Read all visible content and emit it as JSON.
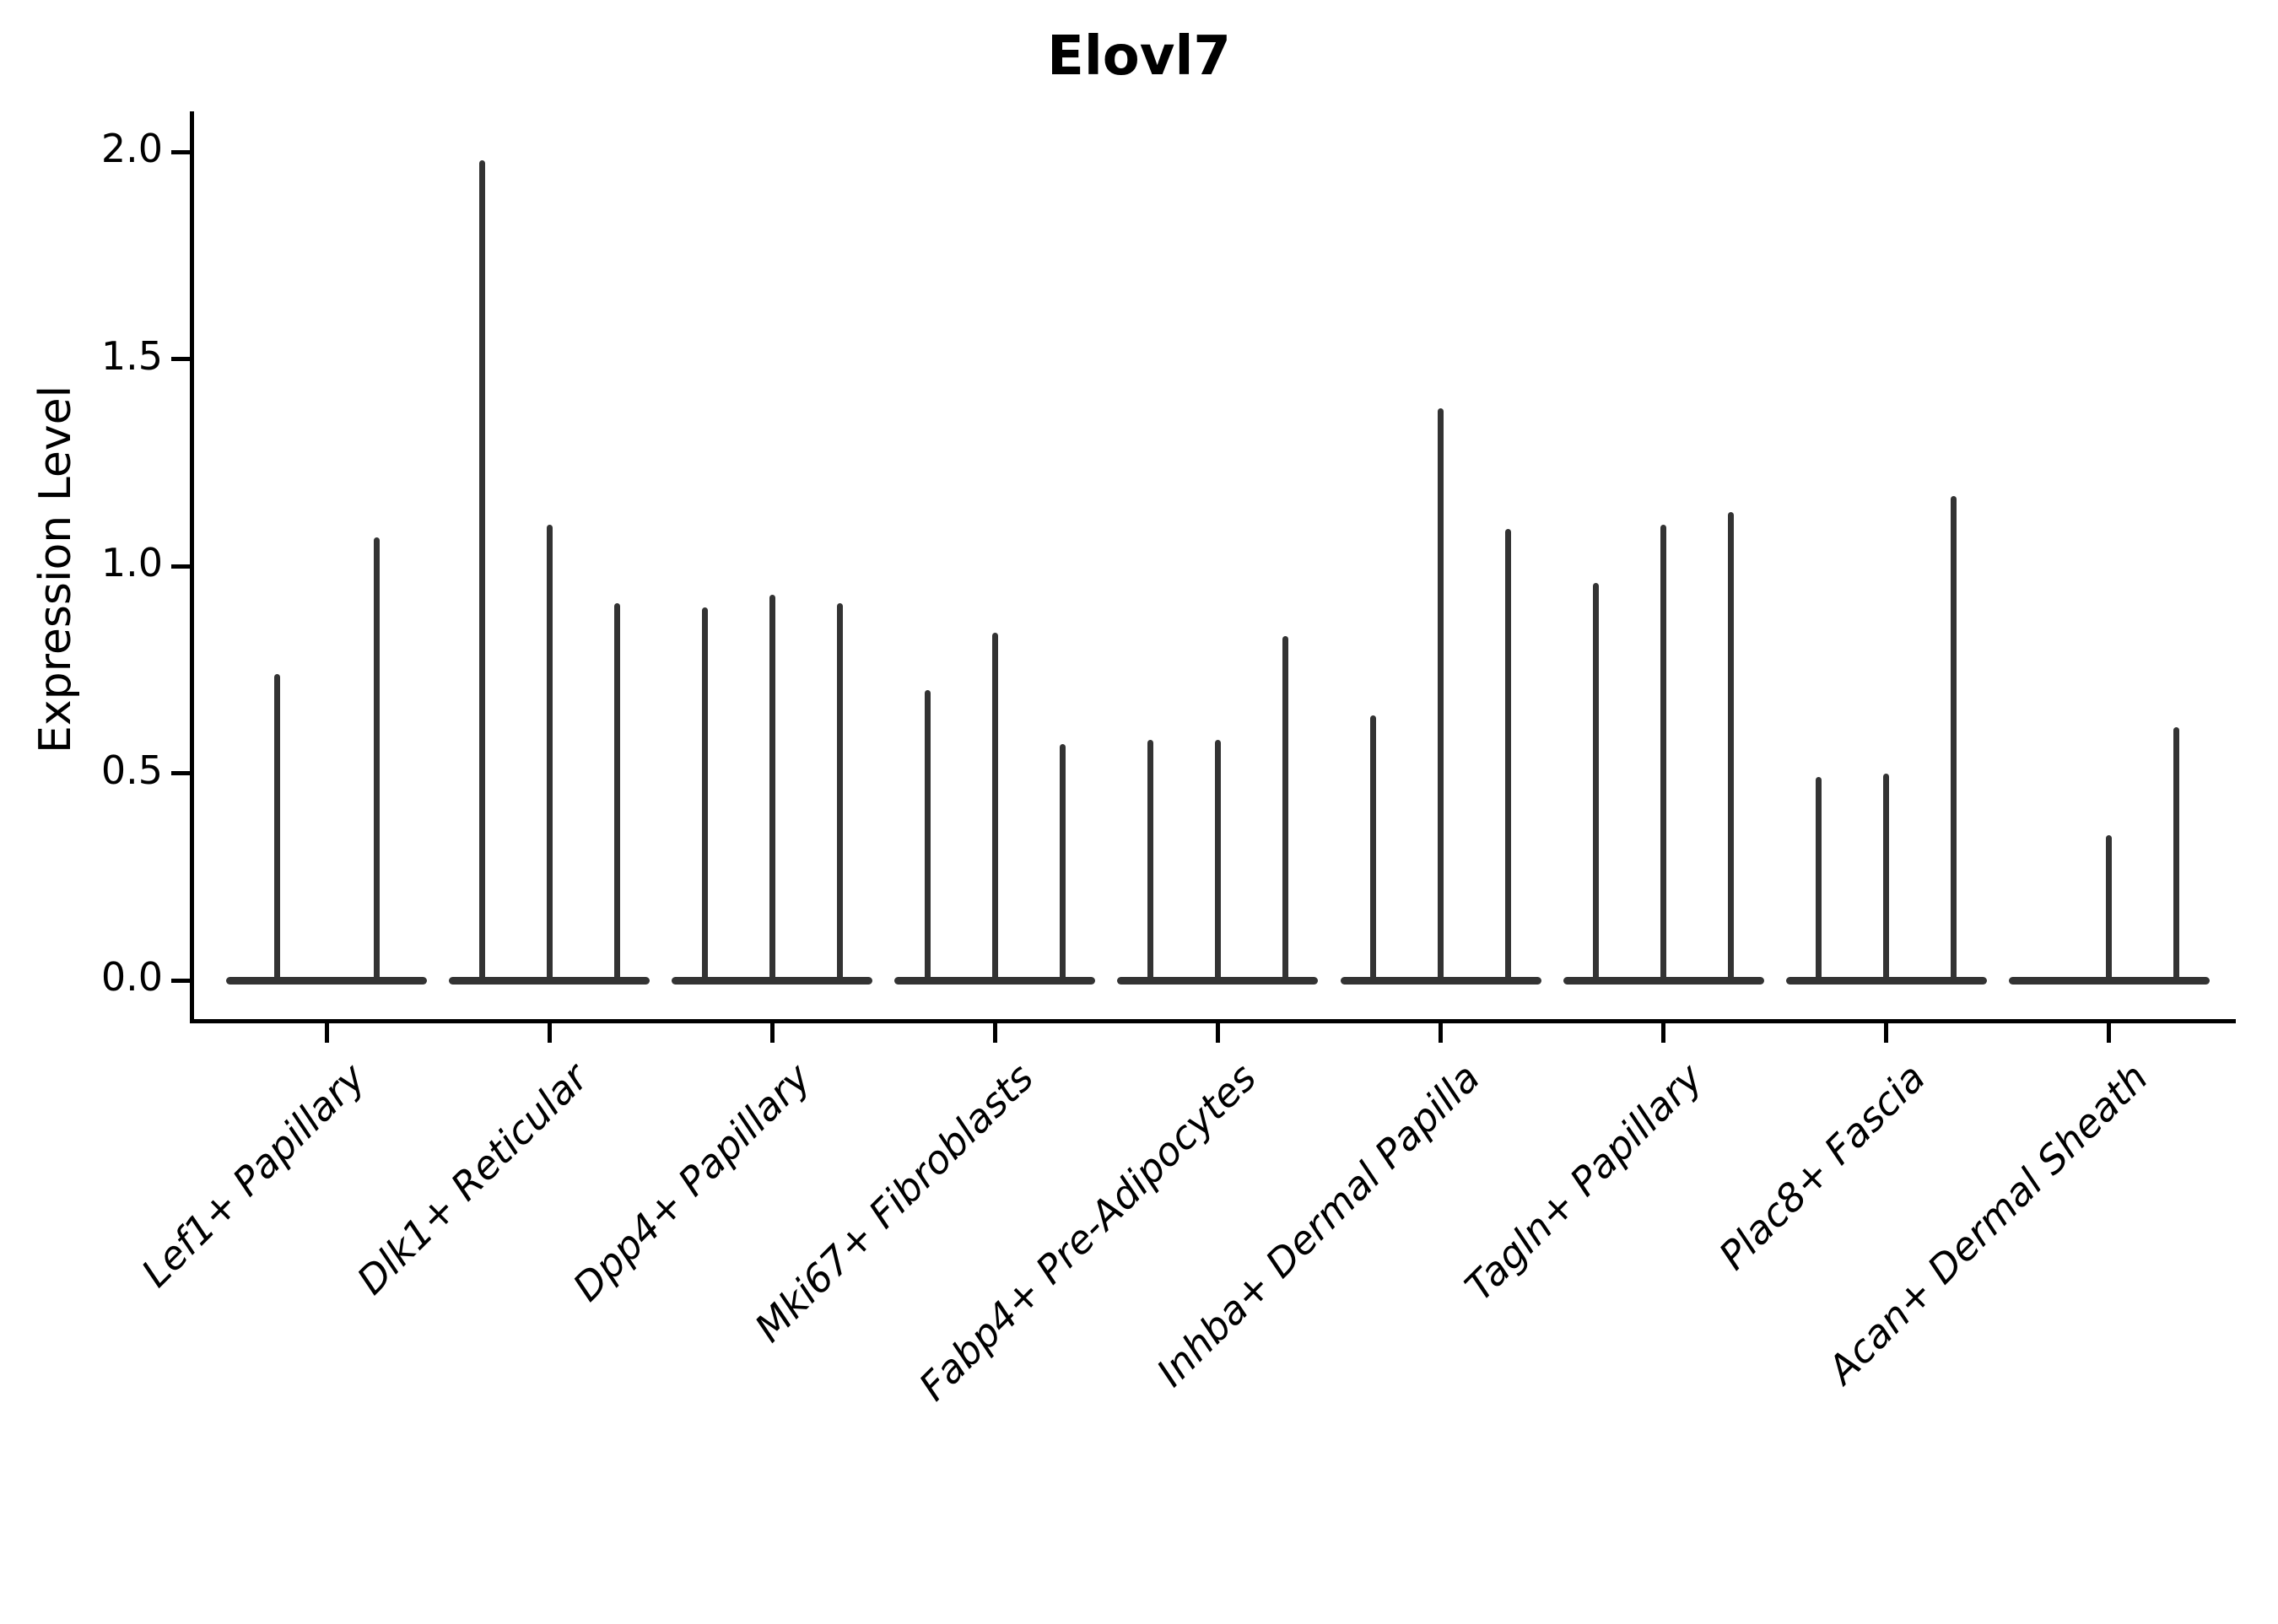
{
  "chart_data": {
    "type": "violin",
    "title": "Elovl7",
    "xlabel": "",
    "ylabel": "Expression Level",
    "ylim": [
      0,
      2.05
    ],
    "yticks": [
      0.0,
      0.5,
      1.0,
      1.5,
      2.0
    ],
    "ytick_labels": [
      "0.0",
      "0.5",
      "1.0",
      "1.5",
      "2.0"
    ],
    "grid": false,
    "legend": "none",
    "note": "Each category shows thin violins (one per sub-sample) rising from a flat base at 0; values below are the peak (max) expression of each violin.",
    "categories": [
      "Lef1+ Papillary",
      "Dlk1+ Reticular",
      "Dpp4+ Papillary",
      "Mki67+ Fibroblasts",
      "Fabp4+ Pre-Adipocytes",
      "Inhba+ Dermal Papilla",
      "Tagln+ Papillary",
      "Plac8+ Fascia",
      "Acan+ Dermal Sheath"
    ],
    "series": [
      {
        "name": "Lef1+ Papillary",
        "violin_peaks": [
          0.74,
          1.07
        ]
      },
      {
        "name": "Dlk1+ Reticular",
        "violin_peaks": [
          1.98,
          1.1,
          0.91
        ]
      },
      {
        "name": "Dpp4+ Papillary",
        "violin_peaks": [
          0.9,
          0.93,
          0.91
        ]
      },
      {
        "name": "Mki67+ Fibroblasts",
        "violin_peaks": [
          0.7,
          0.84,
          0.57
        ]
      },
      {
        "name": "Fabp4+ Pre-Adipocytes",
        "violin_peaks": [
          0.58,
          0.58,
          0.83
        ]
      },
      {
        "name": "Inhba+ Dermal Papilla",
        "violin_peaks": [
          0.64,
          1.38,
          1.09
        ]
      },
      {
        "name": "Tagln+ Papillary",
        "violin_peaks": [
          0.96,
          1.1,
          1.13
        ]
      },
      {
        "name": "Plac8+ Fascia",
        "violin_peaks": [
          0.49,
          0.5,
          1.17
        ]
      },
      {
        "name": "Acan+ Dermal Sheath",
        "violin_peaks": [
          0.0,
          0.35,
          0.61
        ]
      }
    ],
    "colors": {
      "violin": "#333333",
      "axis": "#000000",
      "text": "#000000",
      "background": "#ffffff"
    }
  }
}
